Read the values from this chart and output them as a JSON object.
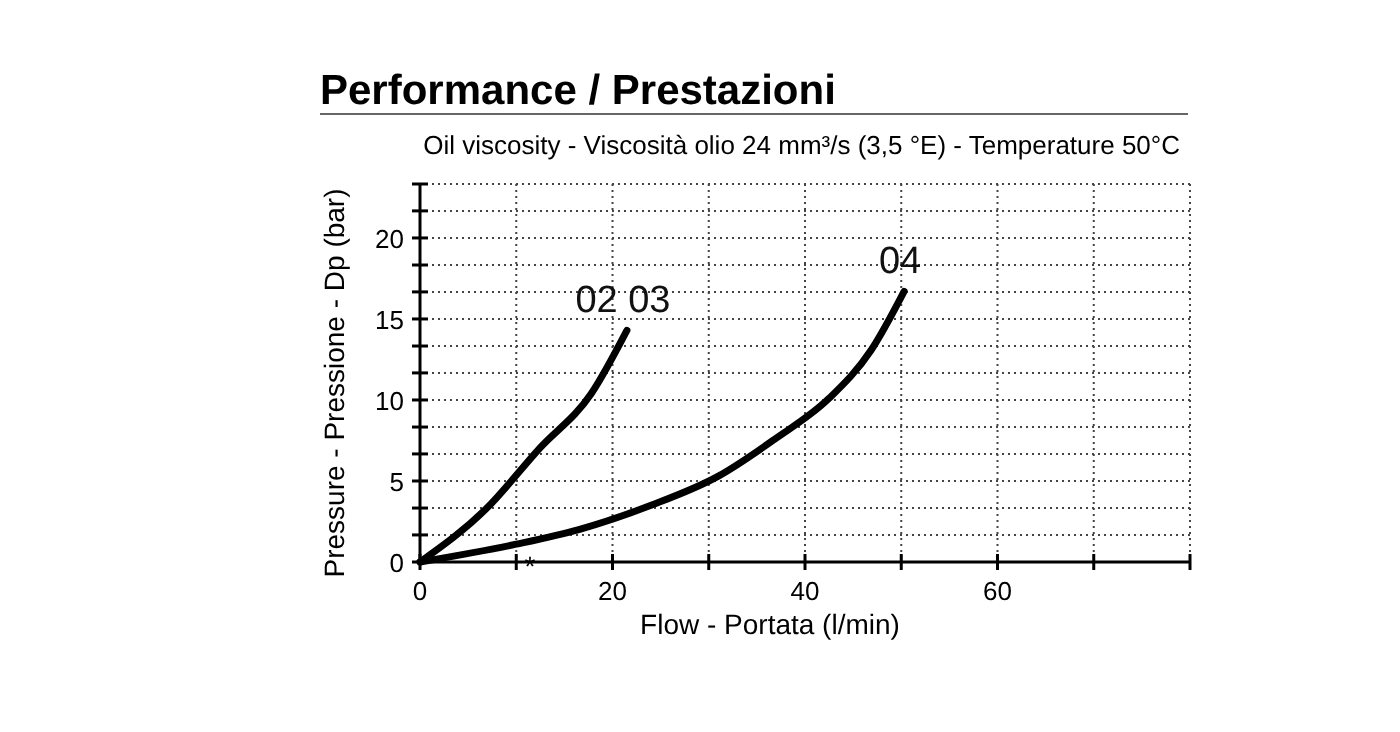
{
  "chart_data": {
    "type": "line",
    "title": "Performance / Prestazioni",
    "subtitle": "Oil viscosity - Viscosità olio 24 mm³/s (3,5 °E) - Temperature 50°C",
    "xlabel": "Flow - Portata (l/min)",
    "ylabel": "Pressure - Pressione - Dp (bar)",
    "series": [
      {
        "name": "02 03",
        "color": "#000000",
        "x": [
          0,
          6.9,
          12.4,
          17.8,
          21.5
        ],
        "values": [
          0,
          3.3,
          7,
          10.4,
          14.3
        ]
      },
      {
        "name": "04",
        "color": "#000000",
        "x": [
          0,
          10,
          16.5,
          24,
          31,
          36.9,
          42.5,
          46.9,
          50.3
        ],
        "values": [
          0,
          1.1,
          2,
          3.5,
          5.3,
          7.6,
          10.1,
          13.1,
          16.7
        ]
      }
    ],
    "xlim": [
      0,
      80
    ],
    "ylim": [
      0,
      23.33
    ],
    "xticks": [
      0,
      {
        "value": 10,
        "label": null
      },
      20,
      {
        "value": 30,
        "label": null
      },
      40,
      {
        "value": 50,
        "label": null
      },
      60,
      {
        "value": 70,
        "label": null
      },
      {
        "value": 80,
        "label": null
      }
    ],
    "yticks": [
      0,
      {
        "value": 1.67,
        "label": null
      },
      {
        "value": 3.33,
        "label": null
      },
      5,
      {
        "value": 6.67,
        "label": null
      },
      {
        "value": 8.33,
        "label": null
      },
      10,
      {
        "value": 11.67,
        "label": null
      },
      {
        "value": 13.33,
        "label": null
      },
      15,
      {
        "value": 16.67,
        "label": null
      },
      {
        "value": 18.33,
        "label": null
      },
      20,
      {
        "value": 21.67,
        "label": null
      },
      {
        "value": 23.33,
        "label": null
      }
    ],
    "annotations": [
      "*"
    ],
    "grid": true,
    "legend": false,
    "marker": "none",
    "line_style": "solid"
  }
}
